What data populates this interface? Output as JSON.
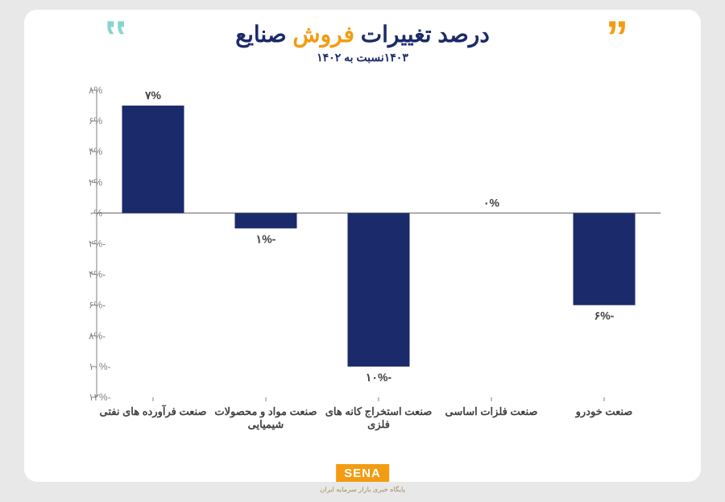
{
  "header": {
    "title_pre": "درصد تغییرات ",
    "title_highlight": "فروش ",
    "title_post": "صنایع",
    "subtitle": "۱۴۰۳نسبت به ۱۴۰۲",
    "quote_left": "‟",
    "quote_right": "”"
  },
  "chart": {
    "type": "bar",
    "categories": [
      "صنعت فرآورده های نفتی",
      "صنعت مواد و محصولات شیمیایی",
      "صنعت استخراج کانه های فلزی",
      "صنعت فلزات اساسی",
      "صنعت خودرو"
    ],
    "values": [
      7,
      -1,
      -10,
      0,
      -6
    ],
    "value_labels": [
      "۷%",
      "-۱%",
      "-۱۰%",
      "۰%",
      "-۶%"
    ],
    "ylim": [
      -12,
      8
    ],
    "ytick_step": 2,
    "ytick_labels": [
      "۸%",
      "۶%",
      "۴%",
      "۲%",
      "۰%",
      "-۲%",
      "-۴%",
      "-۶%",
      "-۸%",
      "-۱۰%",
      "-۱۲%"
    ],
    "ytick_values": [
      8,
      6,
      4,
      2,
      0,
      -2,
      -4,
      -6,
      -8,
      -10,
      -12
    ],
    "bar_color": "#1b2a6b",
    "zero_line_color": "#808080",
    "tick_line_color": "#808080",
    "background_color": "#ffffff",
    "label_color": "#404040",
    "tick_label_color": "#808080",
    "bar_width_ratio": 0.55,
    "title_fontsize": 28,
    "subtitle_fontsize": 14,
    "cat_label_fontsize": 13,
    "val_label_fontsize": 14,
    "tick_label_fontsize": 12,
    "category_wrap": [
      [
        "صنعت فرآورده های نفتی"
      ],
      [
        "صنعت مواد و محصولات",
        "شیمیایی"
      ],
      [
        "صنعت استخراج کانه های",
        "فلزی"
      ],
      [
        "صنعت فلزات اساسی"
      ],
      [
        "صنعت خودرو"
      ]
    ]
  },
  "logo": {
    "text": "SENA",
    "sub": "پایگاه خبری بازار سرمایه ایران"
  },
  "colors": {
    "card_bg": "#ffffff",
    "page_bg": "#e8e8e8",
    "accent_orange": "#f39c12",
    "accent_teal": "#88d5cf",
    "primary_navy": "#1b2a6b"
  }
}
